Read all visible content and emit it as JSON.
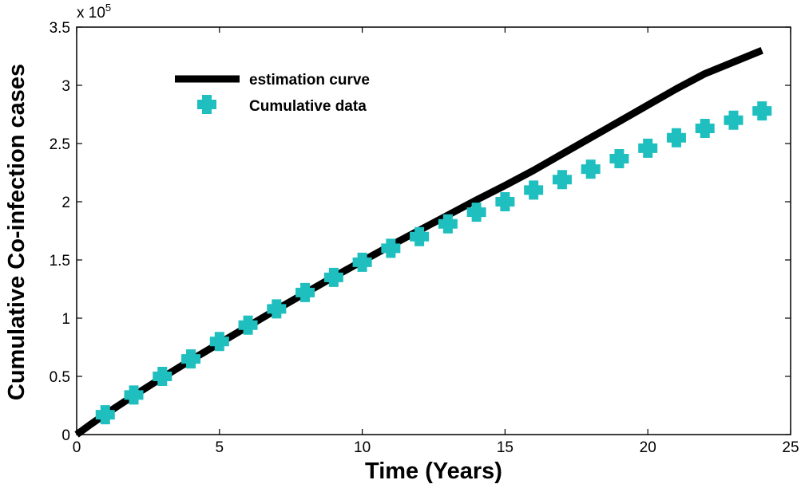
{
  "chart_data": {
    "type": "line",
    "xlabel": "Time (Years)",
    "ylabel": "Cumulative Co-infection cases",
    "xlim": [
      0,
      25
    ],
    "ylim": [
      0,
      3.5
    ],
    "y_multiplier_base": "x 10",
    "y_multiplier_exp": "5",
    "x_ticks": [
      "0",
      "5",
      "10",
      "15",
      "20",
      "25"
    ],
    "y_ticks": [
      "0",
      "0.5",
      "1",
      "1.5",
      "2",
      "2.5",
      "3",
      "3.5"
    ],
    "grid": false,
    "legend_placement": "top-left",
    "series": [
      {
        "name": "estimation curve",
        "kind": "line",
        "color": "#000000",
        "x": [
          0,
          0.5,
          1,
          2,
          3,
          4,
          5,
          6,
          7,
          8,
          9,
          10,
          11,
          12,
          13,
          14,
          15,
          16,
          17,
          18,
          19,
          20,
          21,
          22,
          23,
          24
        ],
        "y": [
          0,
          0.09,
          0.175,
          0.335,
          0.49,
          0.64,
          0.785,
          0.93,
          1.075,
          1.215,
          1.355,
          1.49,
          1.625,
          1.755,
          1.885,
          2.015,
          2.14,
          2.27,
          2.41,
          2.55,
          2.69,
          2.83,
          2.97,
          3.1,
          3.2,
          3.3
        ]
      },
      {
        "name": "Cumulative data",
        "kind": "scatter",
        "color": "#1fbfbf",
        "x": [
          1,
          2,
          3,
          4,
          5,
          6,
          7,
          8,
          9,
          10,
          11,
          12,
          13,
          14,
          15,
          16,
          17,
          18,
          19,
          20,
          21,
          22,
          23,
          24
        ],
        "y": [
          0.17,
          0.34,
          0.5,
          0.65,
          0.8,
          0.94,
          1.08,
          1.22,
          1.35,
          1.48,
          1.6,
          1.7,
          1.81,
          1.91,
          2.0,
          2.1,
          2.19,
          2.28,
          2.37,
          2.46,
          2.55,
          2.63,
          2.7,
          2.78
        ]
      }
    ]
  }
}
